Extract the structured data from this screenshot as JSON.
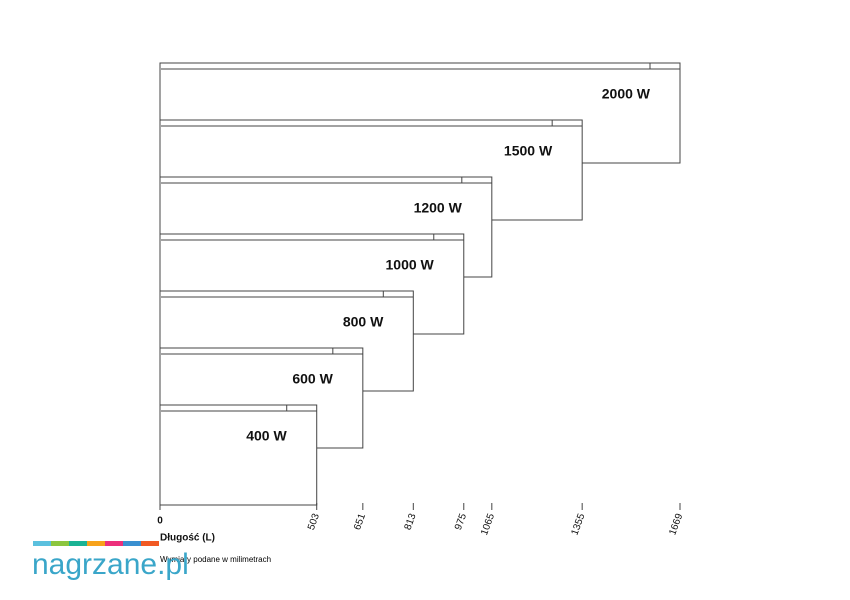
{
  "chart_data": {
    "type": "bar",
    "orientation": "horizontal",
    "categories": [
      "2000 W",
      "1500 W",
      "1200 W",
      "1000 W",
      "800 W",
      "600 W",
      "400 W"
    ],
    "values": [
      1669,
      1355,
      1065,
      975,
      813,
      651,
      503
    ],
    "xlim": [
      0,
      1669
    ],
    "xticks": [
      0,
      503,
      651,
      813,
      975,
      1065,
      1355,
      1669
    ],
    "x_label": "Długość (L)",
    "note": "Wymiary podane w milimetrach",
    "color": "#ffffff"
  },
  "logo": "nagrzane.pl"
}
